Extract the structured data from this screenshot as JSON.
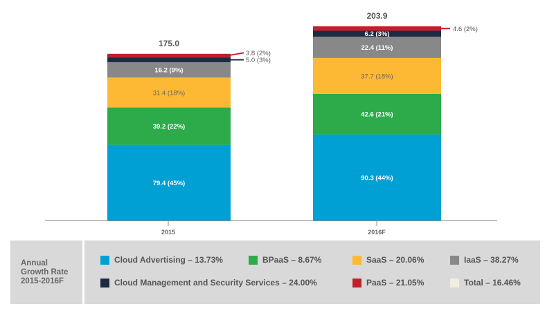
{
  "chart_data": {
    "type": "bar",
    "stacked": true,
    "title": "",
    "xlabel": "",
    "ylabel": "",
    "ylim": [
      0,
      203.9
    ],
    "grid": false,
    "categories": [
      "2015",
      "2016F"
    ],
    "totals": [
      "175.0",
      "203.9"
    ],
    "series": [
      {
        "name": "Cloud Advertising",
        "color": "#00a0d4",
        "values": [
          79.4,
          90.3
        ],
        "labels": [
          "79.4 (45%)",
          "90.3 (44%)"
        ],
        "label_color": "#ffffff",
        "label_position": [
          "inside",
          "inside"
        ]
      },
      {
        "name": "BPaaS",
        "color": "#2daa4a",
        "values": [
          39.2,
          42.6
        ],
        "labels": [
          "39.2 (22%)",
          "42.6 (21%)"
        ],
        "label_color": "#ffffff",
        "label_position": [
          "inside",
          "inside"
        ]
      },
      {
        "name": "SaaS",
        "color": "#fdb933",
        "values": [
          31.4,
          37.7
        ],
        "labels": [
          "31.4 (18%)",
          "37.7 (18%)"
        ],
        "label_color": "#666666",
        "label_position": [
          "inside",
          "inside"
        ]
      },
      {
        "name": "IaaS",
        "color": "#888888",
        "values": [
          16.2,
          22.4
        ],
        "labels": [
          "16.2 (9%)",
          "22.4 (11%)"
        ],
        "label_color": "#ffffff",
        "label_position": [
          "inside",
          "inside"
        ]
      },
      {
        "name": "Cloud Management and Security Services",
        "color": "#1b2b41",
        "values": [
          5.0,
          6.2
        ],
        "labels": [
          "5.0 (3%)",
          "6.2 (3%)"
        ],
        "label_color": "#ffffff",
        "label_position": [
          "outside",
          "inside"
        ]
      },
      {
        "name": "PaaS",
        "color": "#c1202a",
        "values": [
          3.8,
          4.6
        ],
        "labels": [
          "3.8 (2%)",
          "4.6 (2%)"
        ],
        "label_color": "#ffffff",
        "label_position": [
          "outside",
          "outside"
        ]
      }
    ],
    "legend_placement": "bottom"
  },
  "legend": {
    "title": "Annual\nGrowth Rate\n2015-2016F",
    "items": [
      {
        "label": "Cloud Advertising – 13.73%",
        "color": "#00a0d4"
      },
      {
        "label": "BPaaS – 8.67%",
        "color": "#2daa4a"
      },
      {
        "label": "SaaS – 20.06%",
        "color": "#fdb933"
      },
      {
        "label": "IaaS – 38.27%",
        "color": "#888888"
      },
      {
        "label": "Cloud Management and Security Services – 24.00%",
        "color": "#1b2b41"
      },
      {
        "label": "PaaS – 21.05%",
        "color": "#c1202a"
      },
      {
        "label": "Total – 16.46%",
        "color": "#f3ece0"
      }
    ]
  }
}
